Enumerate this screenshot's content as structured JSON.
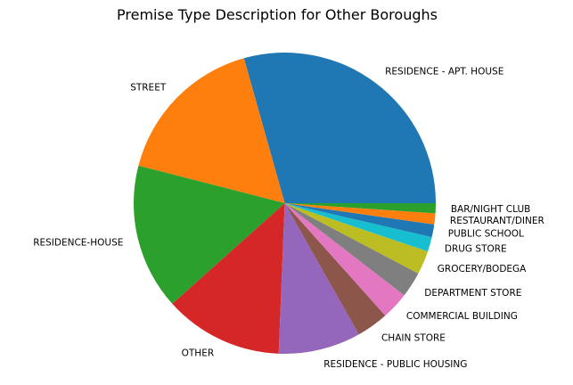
{
  "chart_data": {
    "type": "pie",
    "title": "Premise Type Description for Other Boroughs",
    "start_angle_deg": 0,
    "direction": "counterclockwise",
    "categories": [
      "RESIDENCE - APT. HOUSE",
      "STREET",
      "RESIDENCE-HOUSE",
      "OTHER",
      "RESIDENCE - PUBLIC HOUSING",
      "CHAIN STORE",
      "COMMERCIAL BUILDING",
      "DEPARTMENT STORE",
      "GROCERY/BODEGA",
      "DRUG STORE",
      "PUBLIC SCHOOL",
      "RESTAURANT/DINER",
      "BAR/NIGHT CLUB"
    ],
    "values": [
      30.0,
      17.0,
      16.0,
      13.0,
      9.0,
      3.5,
      3.0,
      2.8,
      2.6,
      1.6,
      1.4,
      1.2,
      1.1
    ],
    "colors": [
      "#1f77b4",
      "#ff7f0e",
      "#2ca02c",
      "#d62728",
      "#9467bd",
      "#8c564b",
      "#e377c2",
      "#7f7f7f",
      "#bcbd22",
      "#17becf",
      "#1f77b4",
      "#ff7f0e",
      "#2ca02c"
    ]
  }
}
